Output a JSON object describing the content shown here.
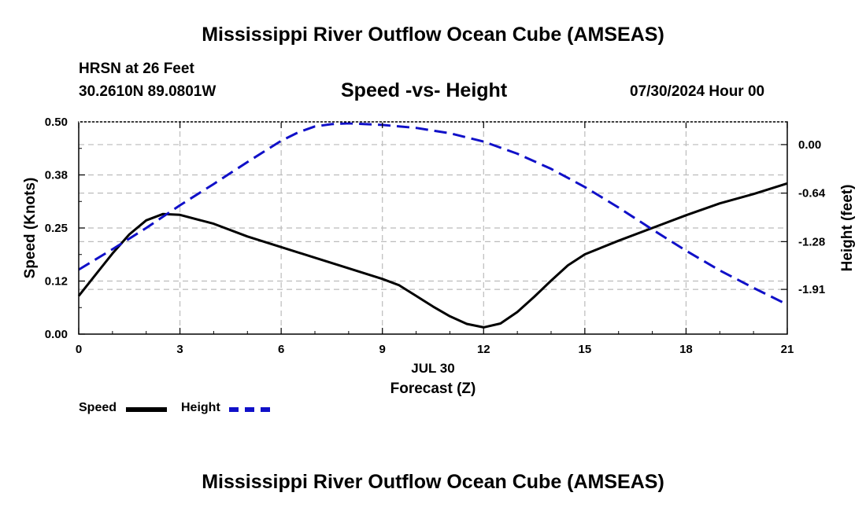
{
  "header": {
    "title": "Mississippi River Outflow Ocean Cube (AMSEAS)",
    "station": "HRSN at 26 Feet",
    "coords": "30.2610N  89.0801W",
    "subtitle": "Speed -vs- Height",
    "datetime": "07/30/2024 Hour 00"
  },
  "footer": {
    "title": "Mississippi River Outflow Ocean Cube (AMSEAS)"
  },
  "legend": {
    "speed_label": "Speed",
    "height_label": "Height"
  },
  "colors": {
    "speed": "#000000",
    "height": "#1010c8",
    "grid": "#bbbbbb"
  },
  "chart_data": {
    "type": "line",
    "title": "Speed -vs- Height",
    "xlabel": "Forecast (Z)",
    "xlabel_date": "JUL 30",
    "ylabel_left": "Speed (Knots)",
    "ylabel_right": "Height (feet)",
    "xlim": [
      0,
      21
    ],
    "ylim_left": [
      0,
      0.5
    ],
    "ylim_right": [
      -2.5,
      0.3
    ],
    "x_ticks": [
      0,
      3,
      6,
      9,
      12,
      15,
      18,
      21
    ],
    "x_tick_labels": [
      "0",
      "3",
      "6",
      "9",
      "12",
      "15",
      "18",
      "21"
    ],
    "y_left_ticks": [
      0,
      0.125,
      0.25,
      0.375,
      0.5
    ],
    "y_left_tick_labels": [
      "0.00",
      "0.12",
      "0.25",
      "0.38",
      "0.50"
    ],
    "y_right_ticks": [
      0.0,
      -0.64,
      -1.28,
      -1.91
    ],
    "y_right_tick_labels": [
      "0.00",
      "-0.64",
      "-1.28",
      "-1.91"
    ],
    "grid": true,
    "legend_position": "bottom-left",
    "series": [
      {
        "name": "Speed",
        "axis": "left",
        "style": "solid",
        "x": [
          0,
          0.5,
          1,
          1.5,
          2,
          2.5,
          3,
          4,
          5,
          6,
          7,
          8,
          9,
          9.5,
          10,
          10.5,
          11,
          11.5,
          12,
          12.5,
          13,
          13.5,
          14,
          14.5,
          15,
          16,
          17,
          18,
          19,
          20,
          21
        ],
        "values": [
          0.09,
          0.14,
          0.19,
          0.235,
          0.268,
          0.283,
          0.281,
          0.26,
          0.23,
          0.205,
          0.18,
          0.155,
          0.13,
          0.115,
          0.09,
          0.065,
          0.042,
          0.024,
          0.016,
          0.025,
          0.052,
          0.088,
          0.126,
          0.162,
          0.188,
          0.22,
          0.25,
          0.28,
          0.308,
          0.33,
          0.355
        ]
      },
      {
        "name": "Height",
        "axis": "right",
        "style": "dashed",
        "x": [
          0,
          1,
          2,
          3,
          4,
          5,
          6,
          6.5,
          7,
          7.5,
          8,
          9,
          10,
          11,
          12,
          13,
          14,
          15,
          16,
          17,
          18,
          19,
          20,
          21
        ],
        "values": [
          -1.65,
          -1.38,
          -1.1,
          -0.8,
          -0.52,
          -0.23,
          0.05,
          0.16,
          0.24,
          0.27,
          0.28,
          0.26,
          0.22,
          0.15,
          0.04,
          -0.12,
          -0.32,
          -0.56,
          -0.83,
          -1.12,
          -1.4,
          -1.66,
          -1.89,
          -2.11
        ]
      }
    ]
  }
}
